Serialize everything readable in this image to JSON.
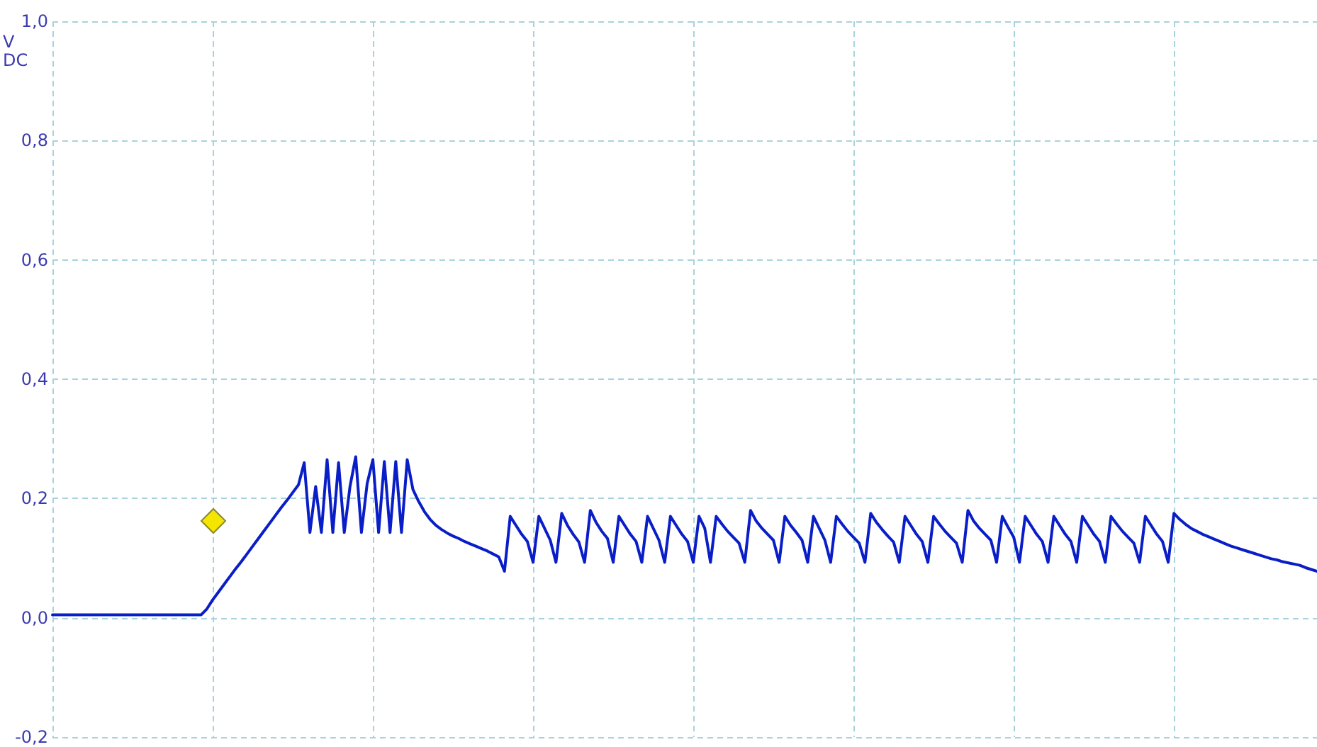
{
  "chart_data": {
    "type": "line",
    "ylabel": "V DC",
    "ylim": [
      -0.2,
      1.0
    ],
    "yticks": [
      {
        "value": -0.2,
        "label": "-0,2"
      },
      {
        "value": 0,
        "label": "0,0"
      },
      {
        "value": 0.2,
        "label": "0,2"
      },
      {
        "value": 0.4,
        "label": "0,4"
      },
      {
        "value": 0.6,
        "label": "0,6"
      },
      {
        "value": 0.8,
        "label": "0,8"
      },
      {
        "value": 1.0,
        "label": "1,0"
      }
    ],
    "tick_labels": "y",
    "grid": true,
    "line_style": "solid",
    "categories": [
      null,
      null,
      null,
      null,
      null,
      null,
      null,
      null,
      null,
      null,
      null,
      null,
      null,
      null,
      null,
      null,
      null,
      null,
      null,
      null,
      null,
      null,
      null,
      null,
      null,
      null,
      null,
      null,
      null,
      null,
      null,
      null,
      null,
      null,
      null,
      null,
      null,
      null,
      null,
      null,
      null,
      null,
      null,
      null,
      null,
      null,
      null,
      null,
      null,
      null,
      null,
      null,
      null,
      null,
      null,
      null,
      null,
      null,
      null,
      null,
      null,
      null,
      null,
      null,
      null,
      null,
      null,
      null,
      null,
      null,
      null,
      null,
      null,
      null,
      null,
      null,
      null,
      null,
      null,
      null,
      null,
      null,
      null,
      null,
      null,
      null,
      null,
      null,
      null,
      null,
      null,
      null,
      null,
      null,
      null,
      null,
      null,
      null,
      null,
      null,
      null,
      null,
      null,
      null,
      null,
      null,
      null,
      null,
      null,
      null,
      null,
      null,
      null,
      null,
      null,
      null,
      null,
      null,
      null,
      null,
      null,
      null,
      null,
      null,
      null,
      null,
      null,
      null,
      null,
      null,
      null,
      null,
      null,
      null,
      null,
      null,
      null,
      null,
      null,
      null,
      null,
      null,
      null,
      null,
      null,
      null,
      null,
      null,
      null,
      null,
      null,
      null,
      null,
      null,
      null,
      null,
      null,
      null,
      null,
      null,
      null,
      null,
      null,
      null,
      null,
      null,
      null,
      null,
      null,
      null,
      null,
      null,
      null,
      null,
      null,
      null,
      null,
      null,
      null,
      null,
      null,
      null,
      null,
      null,
      null,
      null,
      null,
      null,
      null,
      null,
      null,
      null,
      null,
      null,
      null,
      null,
      null,
      null,
      null,
      null,
      null,
      null,
      null,
      null,
      null,
      null,
      null,
      null,
      null,
      null,
      null,
      null,
      null,
      null,
      null,
      null,
      null,
      null,
      null,
      null,
      null,
      null
    ],
    "series": [
      {
        "color": "#0a1ec8",
        "values": [
          0.005,
          0.005,
          0.005,
          0.005,
          0.005,
          0.005,
          0.005,
          0.005,
          0.005,
          0.005,
          0.005,
          0.005,
          0.005,
          0.005,
          0.005,
          0.005,
          0.005,
          0.005,
          0.005,
          0.005,
          0.005,
          0.005,
          0.005,
          0.005,
          0.005,
          0.005,
          0.005,
          0.015,
          0.03,
          0.043,
          0.056,
          0.069,
          0.082,
          0.094,
          0.107,
          0.12,
          0.133,
          0.146,
          0.159,
          0.172,
          0.185,
          0.197,
          0.21,
          0.223,
          0.26,
          0.143,
          0.22,
          0.143,
          0.265,
          0.143,
          0.26,
          0.143,
          0.22,
          0.27,
          0.143,
          0.225,
          0.265,
          0.143,
          0.262,
          0.143,
          0.262,
          0.143,
          0.265,
          0.215,
          0.195,
          0.178,
          0.165,
          0.155,
          0.148,
          0.142,
          0.137,
          0.133,
          0.128,
          0.124,
          0.12,
          0.116,
          0.112,
          0.107,
          0.102,
          0.078,
          0.17,
          0.155,
          0.14,
          0.128,
          0.093,
          0.17,
          0.15,
          0.13,
          0.093,
          0.175,
          0.155,
          0.14,
          0.127,
          0.093,
          0.18,
          0.16,
          0.145,
          0.133,
          0.093,
          0.17,
          0.155,
          0.14,
          0.128,
          0.093,
          0.17,
          0.15,
          0.13,
          0.093,
          0.17,
          0.155,
          0.14,
          0.128,
          0.093,
          0.17,
          0.15,
          0.093,
          0.17,
          0.157,
          0.145,
          0.135,
          0.125,
          0.093,
          0.18,
          0.162,
          0.15,
          0.14,
          0.13,
          0.093,
          0.17,
          0.155,
          0.143,
          0.13,
          0.093,
          0.17,
          0.15,
          0.13,
          0.093,
          0.17,
          0.157,
          0.145,
          0.135,
          0.125,
          0.093,
          0.175,
          0.16,
          0.148,
          0.137,
          0.127,
          0.093,
          0.17,
          0.155,
          0.14,
          0.128,
          0.093,
          0.17,
          0.157,
          0.145,
          0.135,
          0.125,
          0.093,
          0.18,
          0.162,
          0.15,
          0.14,
          0.13,
          0.093,
          0.17,
          0.152,
          0.135,
          0.093,
          0.17,
          0.155,
          0.14,
          0.128,
          0.093,
          0.17,
          0.155,
          0.14,
          0.128,
          0.093,
          0.17,
          0.155,
          0.14,
          0.128,
          0.093,
          0.17,
          0.157,
          0.145,
          0.135,
          0.125,
          0.093,
          0.17,
          0.155,
          0.14,
          0.128,
          0.093,
          0.175,
          0.165,
          0.157,
          0.15,
          0.145,
          0.14,
          0.136,
          0.132,
          0.128,
          0.124,
          0.12,
          0.117,
          0.114,
          0.111,
          0.108,
          0.105,
          0.102,
          0.099,
          0.097,
          0.094,
          0.092,
          0.09,
          0.088,
          0.084,
          0.081,
          0.078
        ]
      }
    ]
  }
}
